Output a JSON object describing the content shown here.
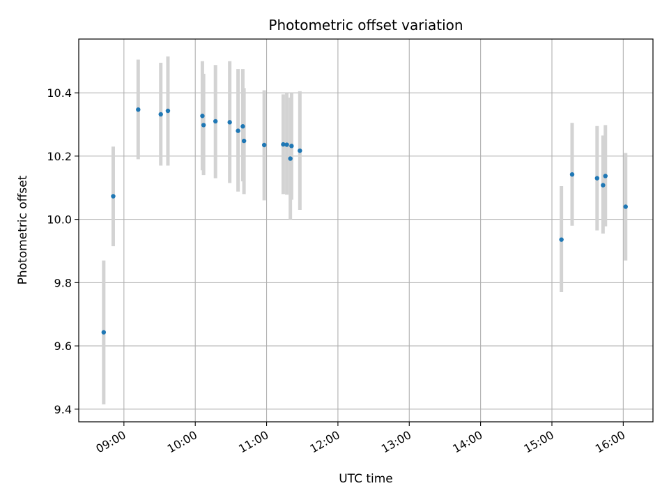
{
  "chart_data": {
    "type": "scatter",
    "title": "Photometric offset variation",
    "xlabel": "UTC time",
    "ylabel": "Photometric offset",
    "x_unit": "UTC time (HH:MM)",
    "xlim": [
      "08:22",
      "16:25"
    ],
    "ylim": [
      9.36,
      10.57
    ],
    "x_ticks": [
      "09:00",
      "10:00",
      "11:00",
      "12:00",
      "13:00",
      "14:00",
      "15:00",
      "16:00"
    ],
    "y_ticks": [
      "9.4",
      "9.6",
      "9.8",
      "10.0",
      "10.2",
      "10.4"
    ],
    "grid": true,
    "errorbar_color": "#d3d3d3",
    "point_color": "#1f77b4",
    "points": [
      {
        "x": "08:43",
        "y": 9.643,
        "low": 9.415,
        "high": 9.87
      },
      {
        "x": "08:51",
        "y": 10.073,
        "low": 9.915,
        "high": 10.23
      },
      {
        "x": "09:12",
        "y": 10.347,
        "low": 10.19,
        "high": 10.505
      },
      {
        "x": "09:31",
        "y": 10.332,
        "low": 10.17,
        "high": 10.495
      },
      {
        "x": "09:37",
        "y": 10.343,
        "low": 10.17,
        "high": 10.515
      },
      {
        "x": "10:06",
        "y": 10.327,
        "low": 10.155,
        "high": 10.5
      },
      {
        "x": "10:07",
        "y": 10.298,
        "low": 10.14,
        "high": 10.46
      },
      {
        "x": "10:17",
        "y": 10.31,
        "low": 10.13,
        "high": 10.488
      },
      {
        "x": "10:29",
        "y": 10.307,
        "low": 10.115,
        "high": 10.5
      },
      {
        "x": "10:36",
        "y": 10.28,
        "low": 10.088,
        "high": 10.475
      },
      {
        "x": "10:40",
        "y": 10.294,
        "low": 10.12,
        "high": 10.475
      },
      {
        "x": "10:41",
        "y": 10.248,
        "low": 10.08,
        "high": 10.415
      },
      {
        "x": "10:58",
        "y": 10.235,
        "low": 10.06,
        "high": 10.408
      },
      {
        "x": "11:14",
        "y": 10.237,
        "low": 10.08,
        "high": 10.395
      },
      {
        "x": "11:17",
        "y": 10.236,
        "low": 10.078,
        "high": 10.398
      },
      {
        "x": "11:20",
        "y": 10.192,
        "low": 10.0,
        "high": 10.385
      },
      {
        "x": "11:21",
        "y": 10.232,
        "low": 10.062,
        "high": 10.4
      },
      {
        "x": "11:28",
        "y": 10.217,
        "low": 10.03,
        "high": 10.405
      },
      {
        "x": "15:08",
        "y": 9.936,
        "low": 9.77,
        "high": 10.105
      },
      {
        "x": "15:17",
        "y": 10.142,
        "low": 9.98,
        "high": 10.305
      },
      {
        "x": "15:38",
        "y": 10.13,
        "low": 9.965,
        "high": 10.295
      },
      {
        "x": "15:43",
        "y": 10.108,
        "low": 9.955,
        "high": 10.265
      },
      {
        "x": "15:45",
        "y": 10.137,
        "low": 9.978,
        "high": 10.298
      },
      {
        "x": "16:02",
        "y": 10.04,
        "low": 9.87,
        "high": 10.21
      }
    ]
  }
}
